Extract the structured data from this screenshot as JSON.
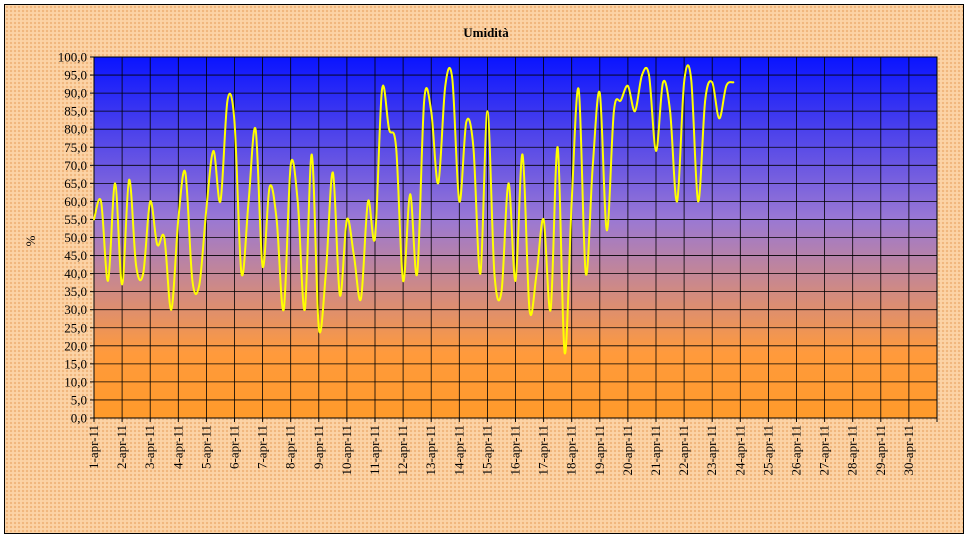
{
  "chart_data": {
    "type": "line",
    "title": "Umidità",
    "xlabel": "",
    "ylabel": "%",
    "ylim": [
      0,
      100
    ],
    "y_step": 5,
    "y_tick_labels": [
      "0,0",
      "5,0",
      "10,0",
      "15,0",
      "20,0",
      "25,0",
      "30,0",
      "35,0",
      "40,0",
      "45,0",
      "50,0",
      "55,0",
      "60,0",
      "65,0",
      "70,0",
      "75,0",
      "80,0",
      "85,0",
      "90,0",
      "95,0",
      "100,0"
    ],
    "x_tick_labels": [
      "1-apr-11",
      "2-apr-11",
      "3-apr-11",
      "4-apr-11",
      "5-apr-11",
      "6-apr-11",
      "7-apr-11",
      "8-apr-11",
      "9-apr-11",
      "10-apr-11",
      "11-apr-11",
      "12-apr-11",
      "13-apr-11",
      "14-apr-11",
      "15-apr-11",
      "16-apr-11",
      "17-apr-11",
      "18-apr-11",
      "19-apr-11",
      "20-apr-11",
      "21-apr-11",
      "22-apr-11",
      "23-apr-11",
      "24-apr-11",
      "25-apr-11",
      "26-apr-11",
      "27-apr-11",
      "28-apr-11",
      "29-apr-11",
      "30-apr-11"
    ],
    "grid": true,
    "series_color": "#ffff00",
    "plot_gradient_colors": [
      "#0a14ff",
      "#9a78d4",
      "#ff9a3c",
      "#ff9a2a"
    ],
    "series": [
      {
        "x_day_start": 1,
        "x_day_step": 0.25,
        "values": [
          55,
          60,
          38,
          65,
          37,
          66,
          42,
          40,
          60,
          48,
          50,
          30,
          55,
          68,
          38,
          37,
          58,
          74,
          60,
          88,
          82,
          40,
          60,
          80,
          42,
          64,
          55,
          30,
          70,
          60,
          30,
          73,
          25,
          40,
          68,
          34,
          55,
          45,
          33,
          60,
          50,
          91,
          80,
          75,
          38,
          62,
          40,
          88,
          85,
          65,
          92,
          94,
          60,
          82,
          75,
          40,
          85,
          40,
          35,
          65,
          38,
          73,
          30,
          40,
          55,
          30,
          75,
          18,
          60,
          91,
          40,
          70,
          90,
          52,
          85,
          88,
          92,
          85,
          95,
          95,
          74,
          93,
          85,
          60,
          93,
          94,
          60,
          88,
          93,
          83,
          92,
          93
        ]
      }
    ]
  }
}
